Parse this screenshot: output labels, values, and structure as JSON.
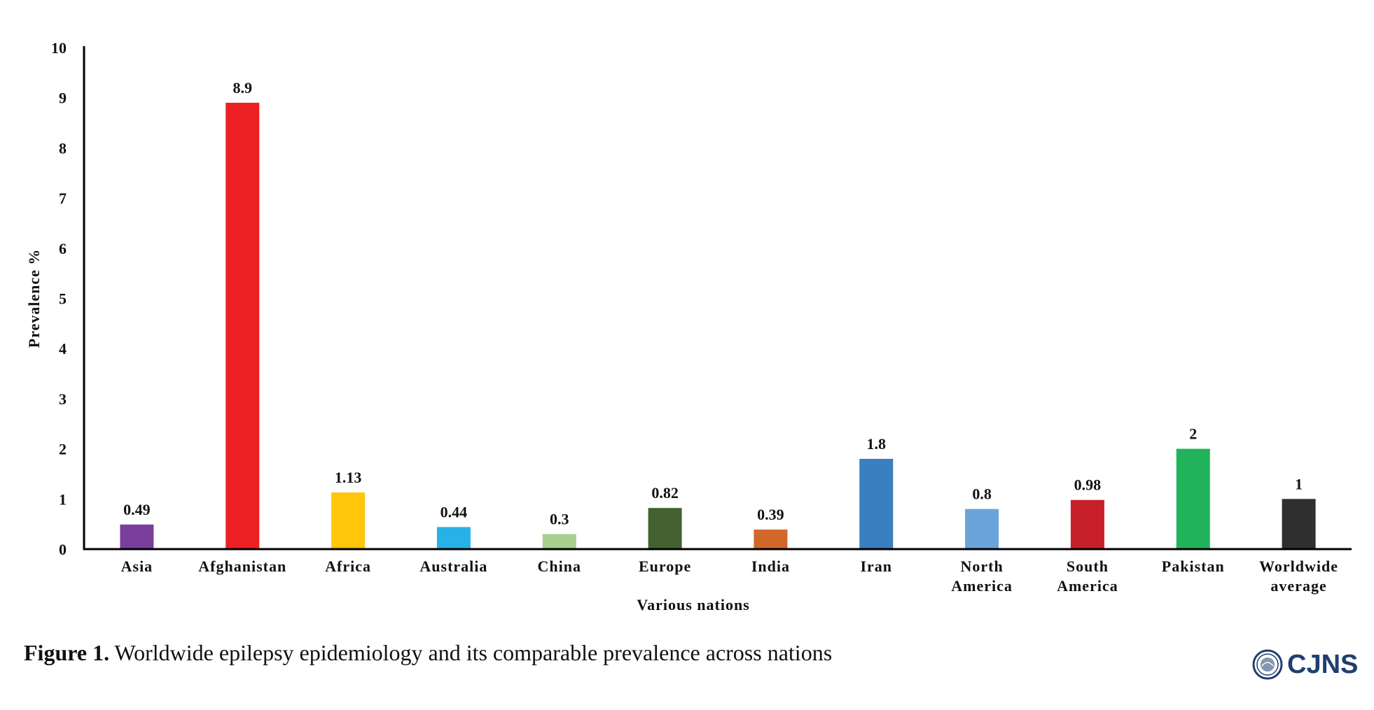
{
  "chart_data": {
    "type": "bar",
    "title": "",
    "xlabel": "Various nations",
    "ylabel": "Prevalence %",
    "ylim": [
      0,
      10
    ],
    "yticks": [
      "0",
      "1",
      "2",
      "3",
      "4",
      "5",
      "6",
      "7",
      "8",
      "9",
      "10"
    ],
    "categories": [
      [
        "Asia"
      ],
      [
        "Afghanistan"
      ],
      [
        "Africa"
      ],
      [
        "Australia"
      ],
      [
        "China"
      ],
      [
        "Europe"
      ],
      [
        "India"
      ],
      [
        "Iran"
      ],
      [
        "North",
        "America"
      ],
      [
        "South",
        "America"
      ],
      [
        "Pakistan"
      ],
      [
        "Worldwide",
        "average"
      ]
    ],
    "values": [
      0.49,
      8.9,
      1.13,
      0.44,
      0.3,
      0.82,
      0.39,
      1.8,
      0.8,
      0.98,
      2,
      1
    ],
    "value_labels": [
      "0.49",
      "8.9",
      "1.13",
      "0.44",
      "0.3",
      "0.82",
      "0.39",
      "1.8",
      "0.8",
      "0.98",
      "2",
      "1"
    ],
    "colors": [
      "#7a3f9c",
      "#ed2024",
      "#ffc60b",
      "#26b2e6",
      "#a8d08d",
      "#44622f",
      "#d2672a",
      "#3a7fc0",
      "#6aa4da",
      "#c8202a",
      "#20b35a",
      "#2f2f2f"
    ],
    "grid": false,
    "legend": "none"
  },
  "caption": {
    "label": "Figure 1.",
    "text": " Worldwide epilepsy epidemiology and its comparable prevalence across nations"
  },
  "brand": {
    "name": "CJNS",
    "seal_icon": "journal-seal-icon"
  }
}
